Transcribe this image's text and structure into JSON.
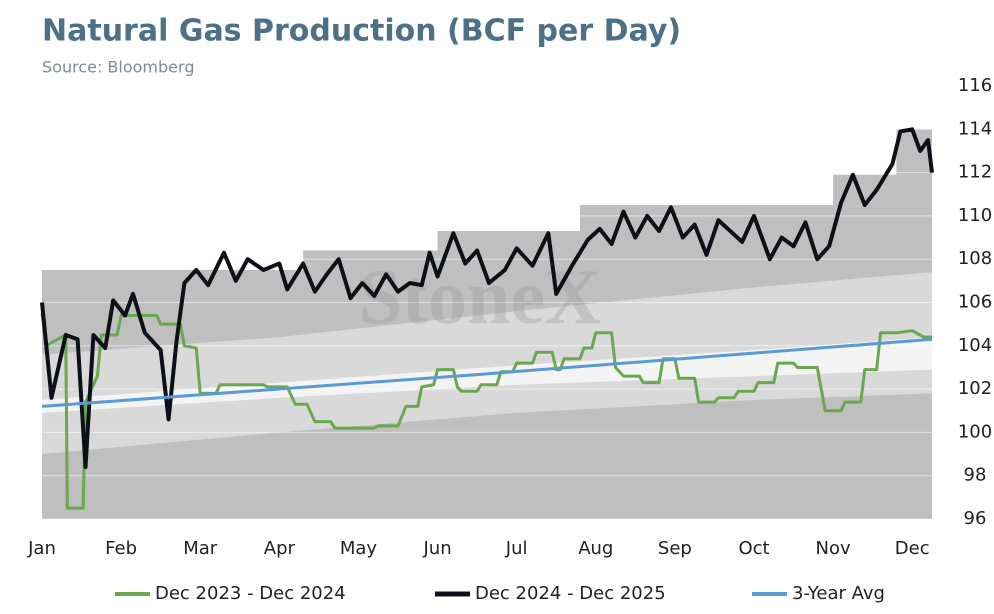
{
  "chart_data": {
    "type": "line",
    "title": "Natural Gas Production (BCF per Day)",
    "subtitle": "Source: Bloomberg",
    "watermark": "StoneX",
    "xlim": [
      0,
      11.25
    ],
    "xticks": [
      {
        "value": 0,
        "label": "Jan"
      },
      {
        "value": 1,
        "label": "Feb"
      },
      {
        "value": 2,
        "label": "Mar"
      },
      {
        "value": 3,
        "label": "Apr"
      },
      {
        "value": 4,
        "label": "May"
      },
      {
        "value": 5,
        "label": "Jun"
      },
      {
        "value": 6,
        "label": "Jul"
      },
      {
        "value": 7,
        "label": "Aug"
      },
      {
        "value": 8,
        "label": "Sep"
      },
      {
        "value": 9,
        "label": "Oct"
      },
      {
        "value": 10,
        "label": "Nov"
      },
      {
        "value": 11,
        "label": "Dec"
      }
    ],
    "ylim": [
      96,
      116
    ],
    "yticks": [
      96,
      98,
      100,
      102,
      104,
      106,
      108,
      110,
      112,
      114,
      116
    ],
    "grid": true,
    "legend": "bottom",
    "bands": [
      {
        "color": "#bfbfbf",
        "x": [
          0,
          3.3,
          3.3,
          5.0,
          5.0,
          6.8,
          6.8,
          10.0,
          10.0,
          10.8,
          10.8,
          11.25
        ],
        "lower": [
          96,
          96,
          96,
          96,
          96,
          96,
          96,
          96,
          96,
          96,
          96,
          96
        ],
        "upper": [
          107.5,
          107.5,
          108.4,
          108.4,
          109.3,
          109.3,
          110.5,
          110.5,
          111.9,
          111.9,
          114.0,
          114.0
        ]
      },
      {
        "color": "#d9d9d9",
        "x": [
          0,
          3,
          6,
          9,
          11.25
        ],
        "lower": [
          99.0,
          100.0,
          100.9,
          101.5,
          101.8
        ],
        "upper": [
          103.6,
          104.4,
          105.6,
          106.7,
          107.4
        ]
      },
      {
        "color": "#f4f4f4",
        "x": [
          0,
          3,
          6,
          9,
          11.25
        ],
        "lower": [
          100.9,
          101.6,
          102.2,
          102.6,
          102.9
        ],
        "upper": [
          101.5,
          102.3,
          103.1,
          103.8,
          104.4
        ]
      }
    ],
    "series": [
      {
        "name": "Dec 2023 - Dec 2024",
        "color": "#6aa84f",
        "width": 3,
        "x": [
          0,
          0.05,
          0.3,
          0.32,
          0.52,
          0.55,
          0.7,
          0.75,
          0.95,
          1.0,
          1.45,
          1.5,
          1.75,
          1.8,
          1.95,
          2.0,
          2.2,
          2.25,
          2.8,
          2.85,
          3.1,
          3.2,
          3.35,
          3.45,
          3.65,
          3.7,
          4.2,
          4.25,
          4.5,
          4.6,
          4.75,
          4.8,
          4.95,
          5.0,
          5.2,
          5.25,
          5.3,
          5.5,
          5.55,
          5.75,
          5.8,
          5.95,
          6.0,
          6.2,
          6.25,
          6.45,
          6.5,
          6.55,
          6.6,
          6.8,
          6.85,
          6.95,
          7.0,
          7.2,
          7.25,
          7.35,
          7.55,
          7.6,
          7.8,
          7.85,
          8.0,
          8.05,
          8.25,
          8.3,
          8.5,
          8.55,
          8.75,
          8.8,
          9.0,
          9.05,
          9.25,
          9.3,
          9.5,
          9.55,
          9.8,
          9.9,
          10.1,
          10.15,
          10.35,
          10.4,
          10.55,
          10.6,
          10.8,
          11.0,
          11.15,
          11.25
        ],
        "values": [
          105.5,
          104.0,
          104.5,
          96.5,
          96.5,
          101.4,
          102.6,
          104.5,
          104.5,
          105.4,
          105.4,
          105.0,
          105.0,
          104.0,
          103.9,
          101.8,
          101.8,
          102.2,
          102.2,
          102.1,
          102.1,
          101.3,
          101.3,
          100.5,
          100.5,
          100.2,
          100.2,
          100.3,
          100.3,
          101.2,
          101.2,
          102.1,
          102.2,
          102.9,
          102.9,
          102.1,
          101.9,
          101.9,
          102.2,
          102.2,
          102.8,
          102.8,
          103.2,
          103.2,
          103.7,
          103.7,
          102.9,
          102.9,
          103.4,
          103.4,
          103.9,
          103.9,
          104.6,
          104.6,
          103.0,
          102.6,
          102.6,
          102.3,
          102.3,
          103.4,
          103.4,
          102.5,
          102.5,
          101.4,
          101.4,
          101.6,
          101.6,
          101.9,
          101.9,
          102.3,
          102.3,
          103.2,
          103.2,
          103.0,
          103.0,
          101.0,
          101.0,
          101.4,
          101.4,
          102.9,
          102.9,
          104.6,
          104.6,
          104.7,
          104.4,
          104.4
        ]
      },
      {
        "name": "Dec 2024 - Dec 2025",
        "color": "#0d1117",
        "width": 4,
        "x": [
          0,
          0.12,
          0.3,
          0.45,
          0.55,
          0.65,
          0.8,
          0.9,
          1.05,
          1.15,
          1.3,
          1.5,
          1.6,
          1.7,
          1.8,
          1.95,
          2.1,
          2.3,
          2.45,
          2.6,
          2.8,
          3.0,
          3.1,
          3.3,
          3.45,
          3.6,
          3.75,
          3.9,
          4.05,
          4.2,
          4.35,
          4.5,
          4.65,
          4.8,
          4.9,
          5.0,
          5.2,
          5.35,
          5.5,
          5.65,
          5.85,
          6.0,
          6.2,
          6.4,
          6.5,
          6.7,
          6.9,
          7.05,
          7.2,
          7.35,
          7.5,
          7.65,
          7.8,
          7.95,
          8.1,
          8.25,
          8.4,
          8.55,
          8.7,
          8.85,
          9.0,
          9.2,
          9.35,
          9.5,
          9.65,
          9.8,
          9.95,
          10.1,
          10.25,
          10.4,
          10.55,
          10.75,
          10.85,
          11.0,
          11.1,
          11.2,
          11.25
        ],
        "values": [
          106.0,
          101.6,
          104.5,
          104.3,
          98.4,
          104.5,
          103.9,
          106.1,
          105.4,
          106.4,
          104.6,
          103.8,
          100.6,
          104.2,
          106.9,
          107.5,
          106.8,
          108.3,
          107.0,
          108.0,
          107.5,
          107.8,
          106.6,
          107.8,
          106.5,
          107.3,
          108.0,
          106.2,
          106.9,
          106.3,
          107.3,
          106.5,
          106.9,
          106.8,
          108.3,
          107.2,
          109.2,
          107.8,
          108.4,
          106.9,
          107.5,
          108.5,
          107.7,
          109.2,
          106.4,
          107.7,
          108.9,
          109.4,
          108.7,
          110.2,
          109.0,
          110.0,
          109.3,
          110.4,
          109.0,
          109.6,
          108.2,
          109.8,
          109.3,
          108.8,
          110.0,
          108.0,
          109.0,
          108.6,
          109.7,
          108.0,
          108.6,
          110.6,
          111.9,
          110.5,
          111.2,
          112.4,
          113.9,
          114.0,
          113.0,
          113.5,
          112.0
        ]
      },
      {
        "name": "3-Year Avg",
        "color": "#5b9bd5",
        "width": 3,
        "x": [
          0,
          5.6,
          11.25
        ],
        "values": [
          101.2,
          102.7,
          104.3
        ]
      }
    ]
  }
}
